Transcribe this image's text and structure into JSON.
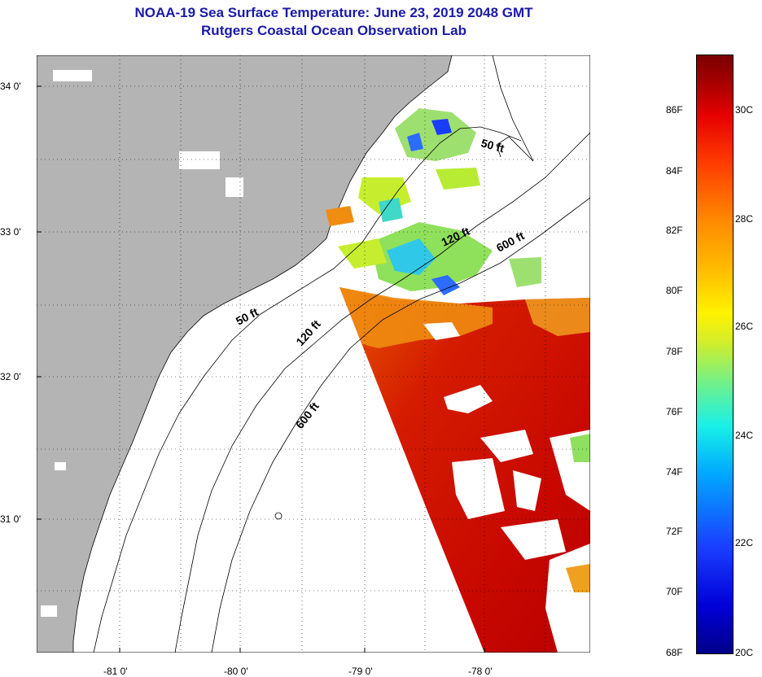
{
  "title": {
    "line1": "NOAA-19 Sea Surface Temperature:  June 23, 2019 2048 GMT",
    "line2": "Rutgers Coastal Ocean Observation Lab"
  },
  "map": {
    "lat_labels": [
      "34 0'",
      "33 0'",
      "32 0'",
      "31 0'"
    ],
    "lon_labels": [
      "-81 0'",
      "-80 0'",
      "-79 0'",
      "-78 0'"
    ],
    "contour_labels": [
      "50 ft",
      "120 ft",
      "600 ft",
      "50 ft",
      "120 ft",
      "600 ft"
    ],
    "colors": {
      "land": "#b4b4b4",
      "no_data": "#ffffff",
      "grid": "#000000"
    }
  },
  "colorbar": {
    "fahrenheit_labels": [
      "86F",
      "84F",
      "82F",
      "80F",
      "78F",
      "76F",
      "74F",
      "72F",
      "70F",
      "68F"
    ],
    "celsius_labels": [
      "30C",
      "28C",
      "26C",
      "24C",
      "22C",
      "20C"
    ]
  }
}
